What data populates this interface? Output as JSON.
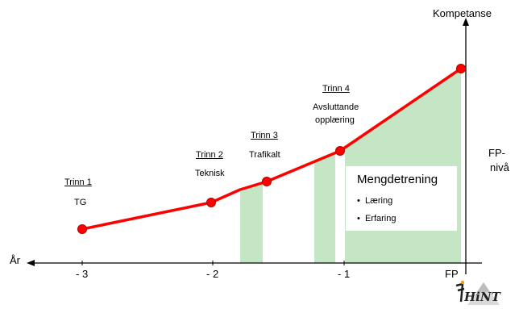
{
  "chart_data": {
    "type": "line",
    "axes": {
      "x_label": "År",
      "y_label": "Kompetanse",
      "x_ticks": [
        "- 3",
        "- 2",
        "- 1",
        "FP"
      ],
      "right_label_line1": "FP-",
      "right_label_line2": "nivå"
    },
    "series": [
      {
        "x": [
          -3,
          -2,
          -1.8,
          -1.6,
          -1,
          0
        ],
        "color": "#ff0000",
        "marker_color": "#ff0000"
      }
    ],
    "steps": [
      {
        "title": "Trinn 1",
        "subtitle": "TG"
      },
      {
        "title": "Trinn 2",
        "subtitle": "Teknisk"
      },
      {
        "title": "Trinn 3",
        "subtitle": "Trafikalt"
      },
      {
        "title": "Trinn 4",
        "subtitle_line1": "Avsluttande",
        "subtitle_line2": "opplæring"
      }
    ],
    "shaded_color": "#c5e6c5",
    "box": {
      "title": "Mengdetrening",
      "items": [
        "Læring",
        "Erfaring"
      ]
    }
  },
  "logo": {
    "text": "HiNT"
  }
}
